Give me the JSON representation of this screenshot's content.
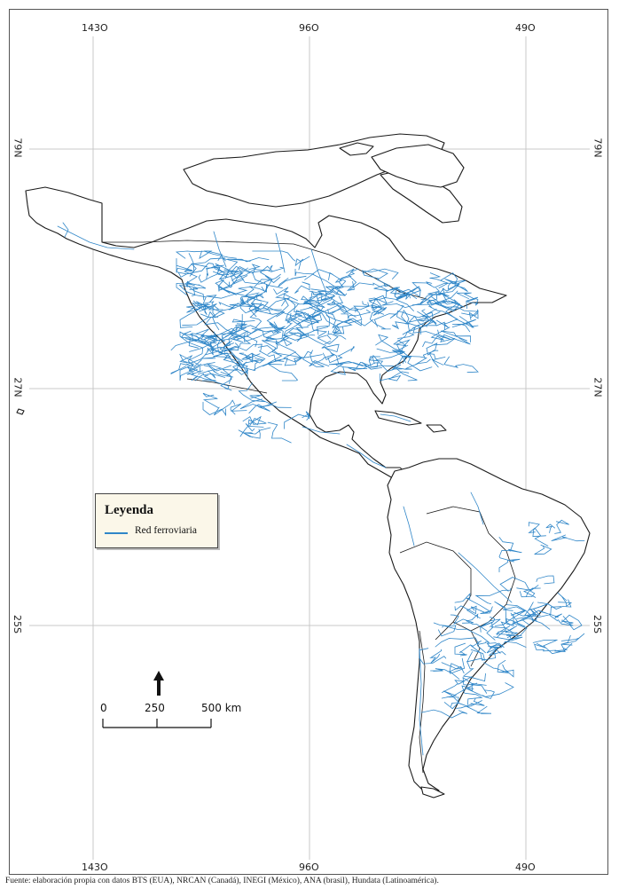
{
  "graticule": {
    "longitudes": [
      "143O",
      "96O",
      "49O"
    ],
    "latitudes": [
      "79N",
      "27N",
      "25S"
    ]
  },
  "legend": {
    "title": "Leyenda",
    "item_label": "Red ferroviaria",
    "rail_color": "#2f86c8"
  },
  "scale_bar": {
    "label_0": "0",
    "label_250": "250",
    "label_500": "500 km"
  },
  "north_arrow": {
    "icon": "north-arrow-icon"
  },
  "footer": {
    "source_text": "Fuente: elaboración propia con datos BTS (EUA), NRCAN (Canadá), INEGI (México), ANA (brasil), Hundata (Latinoamérica)."
  },
  "colors": {
    "outline": "#1a1a1a",
    "graticule": "#c8c8c8",
    "rail": "#2f86c8"
  }
}
